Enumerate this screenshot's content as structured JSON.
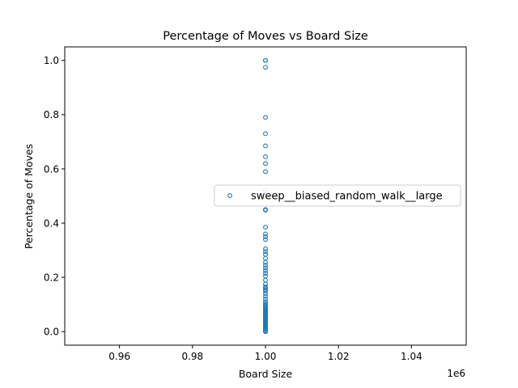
{
  "chart_data": {
    "type": "scatter",
    "title": "Percentage of Moves vs Board Size",
    "xlabel": "Board Size",
    "ylabel": "Percentage of Moves",
    "x_offset_label": "1e6",
    "xlim": [
      0.945,
      1.055
    ],
    "ylim": [
      -0.05,
      1.05
    ],
    "x_ticks": [
      0.96,
      0.98,
      1.0,
      1.02,
      1.04
    ],
    "x_tick_labels": [
      "0.96",
      "0.98",
      "1.00",
      "1.02",
      "1.04"
    ],
    "y_ticks": [
      0.0,
      0.2,
      0.4,
      0.6,
      0.8,
      1.0
    ],
    "y_tick_labels": [
      "0.0",
      "0.2",
      "0.4",
      "0.6",
      "0.8",
      "1.0"
    ],
    "grid": false,
    "legend_position": "center-right",
    "series": [
      {
        "name": "sweep__biased_random_walk__large",
        "color": "#1f77b4",
        "marker": "open-circle",
        "x": [
          1,
          1,
          1,
          1,
          1,
          1,
          1,
          1,
          1,
          1,
          1,
          1,
          1,
          1,
          1,
          1,
          1,
          1,
          1,
          1,
          1,
          1,
          1,
          1,
          1,
          1,
          1,
          1,
          1,
          1,
          1,
          1,
          1,
          1,
          1,
          1,
          1,
          1,
          1,
          1,
          1,
          1,
          1,
          1,
          1,
          1,
          1,
          1,
          1,
          1,
          1,
          1,
          1,
          1,
          1,
          1,
          1,
          1,
          1,
          1,
          1,
          1,
          1,
          1,
          1,
          1,
          1
        ],
        "y": [
          1.0,
          1.0,
          0.975,
          0.79,
          0.73,
          0.685,
          0.645,
          0.62,
          0.59,
          0.52,
          0.45,
          0.448,
          0.385,
          0.36,
          0.35,
          0.34,
          0.305,
          0.295,
          0.285,
          0.27,
          0.255,
          0.245,
          0.235,
          0.225,
          0.215,
          0.205,
          0.19,
          0.175,
          0.165,
          0.16,
          0.155,
          0.15,
          0.14,
          0.13,
          0.12,
          0.105,
          0.1,
          0.095,
          0.09,
          0.085,
          0.08,
          0.075,
          0.07,
          0.065,
          0.06,
          0.055,
          0.05,
          0.045,
          0.04,
          0.035,
          0.03,
          0.025,
          0.02,
          0.015,
          0.01,
          0.005,
          0.002,
          0.0,
          0.012,
          0.022,
          0.032,
          0.042,
          0.052,
          0.062,
          0.072,
          0.082,
          0.11
        ]
      }
    ]
  }
}
